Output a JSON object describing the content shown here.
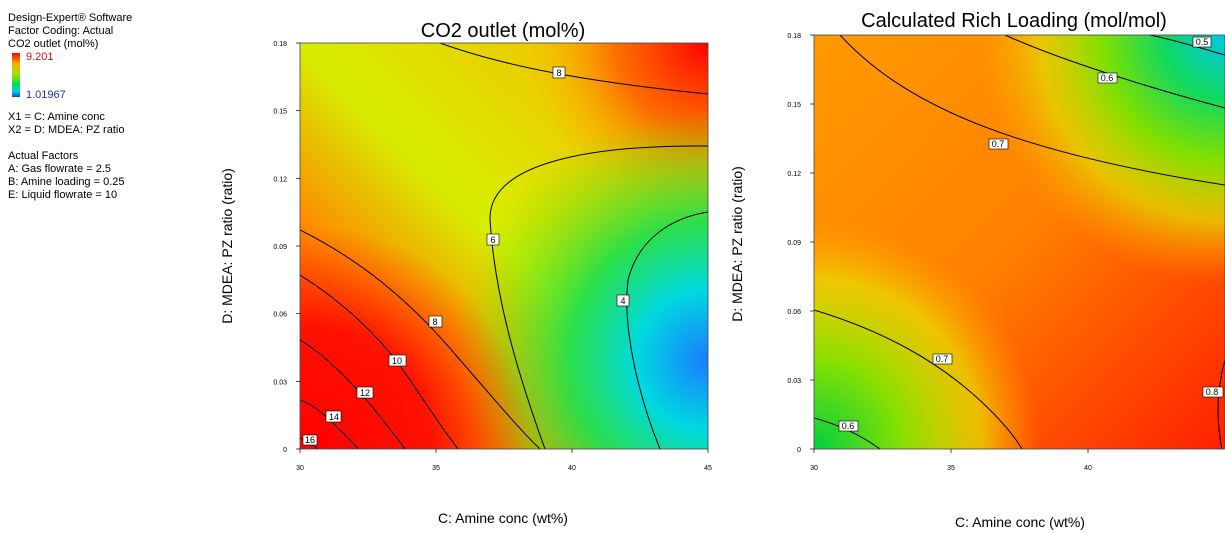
{
  "legend": {
    "software": "Design-Expert® Software",
    "factor_coding": "Factor Coding: Actual",
    "response": "CO2 outlet (mol%)",
    "high": "9.201",
    "low": "1.01967",
    "x1": "X1 = C: Amine conc",
    "x2": "X2 = D: MDEA: PZ ratio",
    "actual_factors_title": "Actual Factors",
    "factor_a": "A: Gas flowrate = 2.5",
    "factor_b": "B: Amine loading = 0.25",
    "factor_e": "E: Liquid flowrate = 10"
  },
  "chart_data": [
    {
      "type": "heatmap",
      "title": "CO2 outlet (mol%)",
      "xlabel": "C: Amine conc (wt%)",
      "ylabel": "D: MDEA: PZ ratio (ratio)",
      "xlim": [
        30,
        45
      ],
      "ylim": [
        0,
        0.18
      ],
      "xticks": [
        30,
        35,
        40,
        45
      ],
      "yticks": [
        "0",
        "0.03",
        "0.06",
        "0.09",
        "0.12",
        "0.15",
        "0.18"
      ],
      "contour_levels": [
        4,
        6,
        8,
        10,
        12,
        14,
        16
      ],
      "contour_labels": [
        "16",
        "14",
        "12",
        "10",
        "8",
        "6",
        "4",
        "8"
      ]
    },
    {
      "type": "heatmap",
      "title": "Calculated Rich Loading (mol/mol)",
      "xlabel": "C: Amine conc (wt%)",
      "ylabel": "D: MDEA: PZ ratio (ratio)",
      "xlim": [
        30,
        45
      ],
      "ylim": [
        0,
        0.18
      ],
      "xticks": [
        30,
        35,
        40
      ],
      "yticks": [
        "0",
        "0.03",
        "0.06",
        "0.09",
        "0.12",
        "0.15",
        "0.18"
      ],
      "contour_levels": [
        0.5,
        0.6,
        0.7,
        0.8
      ],
      "contour_labels": [
        "0.5",
        "0.6",
        "0.7",
        "0.7",
        "0.6",
        "0.8"
      ]
    }
  ]
}
